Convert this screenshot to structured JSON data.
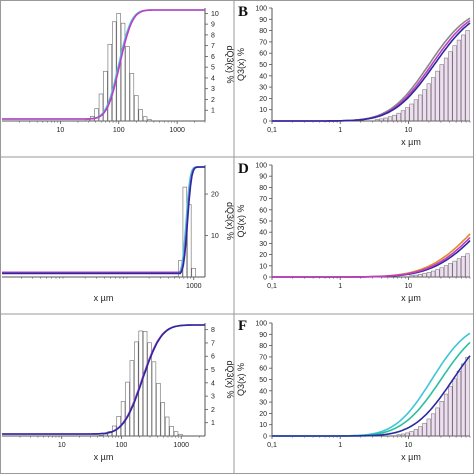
{
  "colors": {
    "background": "#ffffff",
    "axis": "#555555",
    "histogram": "#6a6a6a",
    "cyan": "#3cc6d8",
    "magenta": "#c23cc4",
    "orange": "#e38a2e",
    "navy": "#2a2aa0",
    "teal": "#2bbfa0",
    "gray_fit": "#888888"
  },
  "chart_data": [
    {
      "id": "A",
      "letter": "",
      "type": "histogram+line",
      "xscale": "log",
      "xlim": [
        1,
        3000
      ],
      "xticks": [
        {
          "v": 10,
          "label": "10"
        },
        {
          "v": 100,
          "label": "100"
        },
        {
          "v": 1000,
          "label": "1000"
        }
      ],
      "xlabel": "",
      "ylabel_right": "dQ3(x) %",
      "yticks_right": [
        "1",
        "2",
        "3",
        "4",
        "5",
        "6",
        "7",
        "8",
        "9",
        "10"
      ],
      "ymax_right": 10.5,
      "histogram": {
        "center": 100,
        "sigma": 0.18,
        "peak": 10
      },
      "curves": [
        {
          "color": "cyan",
          "mu": 100,
          "sigma": 0.17
        },
        {
          "color": "magenta",
          "mu": 104,
          "sigma": 0.17
        }
      ]
    },
    {
      "id": "B",
      "letter": "B",
      "type": "histogram+line",
      "xscale": "log",
      "xlim": [
        0.1,
        80
      ],
      "xticks": [
        {
          "v": 0.1,
          "label": "0,1"
        },
        {
          "v": 1,
          "label": "1"
        },
        {
          "v": 10,
          "label": "10"
        }
      ],
      "xlabel": "x µm",
      "ylabel_left": "Q3(x) %",
      "yticks_left": [
        "0",
        "10",
        "20",
        "30",
        "40",
        "50",
        "60",
        "70",
        "80",
        "90",
        "100"
      ],
      "histogram": {
        "center": 30,
        "sigma": 0.42,
        "peak": 97,
        "start": 1.5
      },
      "curves": [
        {
          "color": "gray_fit",
          "mu": 20,
          "sigma": 0.45
        },
        {
          "color": "magenta",
          "mu": 22,
          "sigma": 0.46
        },
        {
          "color": "navy",
          "mu": 24,
          "sigma": 0.47
        }
      ]
    },
    {
      "id": "C",
      "letter": "",
      "type": "histogram+line",
      "xscale": "log",
      "xlim": [
        1,
        1500
      ],
      "xticks": [
        {
          "v": 1000,
          "label": "1000"
        }
      ],
      "xlabel": "x µm",
      "ylabel_right": "dQ3(x) %",
      "yticks_right": [
        "10",
        "20"
      ],
      "ymax_right": 27,
      "histogram": {
        "center": 780,
        "sigma": 0.05,
        "peak": 25
      },
      "curves": [
        {
          "color": "cyan",
          "mu": 760,
          "sigma": 0.05,
          "floor": 2
        },
        {
          "color": "magenta",
          "mu": 790,
          "sigma": 0.05,
          "floor": 2.5
        },
        {
          "color": "navy",
          "mu": 800,
          "sigma": 0.05,
          "floor": 1.5
        }
      ]
    },
    {
      "id": "D",
      "letter": "D",
      "type": "histogram+line",
      "xscale": "log",
      "xlim": [
        0.1,
        80
      ],
      "xticks": [
        {
          "v": 0.1,
          "label": "0,1"
        },
        {
          "v": 1,
          "label": "1"
        },
        {
          "v": 10,
          "label": "10"
        }
      ],
      "xlabel": "x µm",
      "ylabel_left": "Q3(x) %",
      "yticks_left": [
        "0",
        "10",
        "20",
        "30",
        "40",
        "50",
        "60",
        "70",
        "80",
        "90",
        "100"
      ],
      "histogram": {
        "center": 60,
        "sigma": 0.4,
        "peak": 35,
        "start": 3
      },
      "curves": [
        {
          "color": "orange",
          "mu": 120,
          "sigma": 0.6
        },
        {
          "color": "navy",
          "mu": 150,
          "sigma": 0.6
        },
        {
          "color": "magenta",
          "mu": 135,
          "sigma": 0.6
        }
      ]
    },
    {
      "id": "E",
      "letter": "",
      "type": "histogram+line",
      "xscale": "log",
      "xlim": [
        1,
        2500
      ],
      "xticks": [
        {
          "v": 10,
          "label": "10"
        },
        {
          "v": 100,
          "label": "100"
        },
        {
          "v": 1000,
          "label": "1000"
        }
      ],
      "xlabel": "x µm",
      "ylabel_right": "dQ3(x) %",
      "yticks_right": [
        "1",
        "2",
        "3",
        "4",
        "5",
        "6",
        "7",
        "8"
      ],
      "ymax_right": 8.5,
      "histogram": {
        "center": 230,
        "sigma": 0.22,
        "peak": 8
      },
      "curves": [
        {
          "color": "magenta",
          "mu": 220,
          "sigma": 0.25
        },
        {
          "color": "navy",
          "mu": 225,
          "sigma": 0.25
        }
      ]
    },
    {
      "id": "F",
      "letter": "F",
      "type": "histogram+line",
      "xscale": "log",
      "xlim": [
        0.1,
        80
      ],
      "xticks": [
        {
          "v": 0.1,
          "label": "0,1"
        },
        {
          "v": 1,
          "label": "1"
        },
        {
          "v": 10,
          "label": "10"
        }
      ],
      "xlabel": "x µm",
      "ylabel_left": "Q3(x) %",
      "yticks_left": [
        "0",
        "10",
        "20",
        "30",
        "40",
        "50",
        "60",
        "70",
        "80",
        "90",
        "100"
      ],
      "histogram": {
        "center": 45,
        "sigma": 0.35,
        "peak": 95,
        "start": 2
      },
      "curves": [
        {
          "color": "cyan",
          "mu": 22,
          "sigma": 0.42
        },
        {
          "color": "teal",
          "mu": 30,
          "sigma": 0.45
        },
        {
          "color": "navy",
          "mu": 45,
          "sigma": 0.45
        }
      ]
    }
  ]
}
